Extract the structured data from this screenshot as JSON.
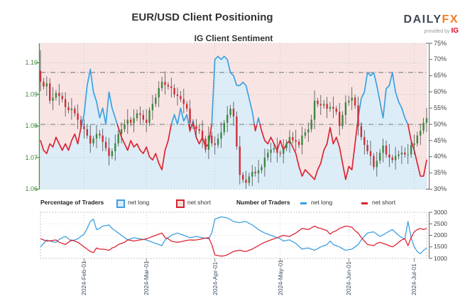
{
  "header": {
    "title": "EUR/USD Client Positioning",
    "logo": {
      "brand_daily": "DAILY",
      "brand_fx": "FX",
      "provided_by": "provided by",
      "provider": "IG"
    }
  },
  "legend": {
    "percentage_label": "Percentage of Traders",
    "number_label": "Number of Traders",
    "net_long": "net long",
    "net_short": "net short"
  },
  "colors": {
    "net_long_blue": "#3da0e0",
    "net_short_red": "#dd2433",
    "bull_candle_green": "#3a8a3f",
    "bear_candle_red": "#cf2e39",
    "wick_gray": "#4a4a4a",
    "long_area_fill": "#dcedf8",
    "short_area_fill": "#f9e4e4",
    "price_axis_green": "#4a8f4a",
    "grid_green": "#a7c9a7",
    "grid_gray": "#c4c4c4",
    "reference_gray": "#8a8a8a",
    "logo_dark": "#3e4a56",
    "logo_orange": "#f47b20",
    "ig_red": "#e40523"
  },
  "chart_data": [
    {
      "type": "candlestick+line",
      "title": "IG Client Sentiment",
      "x_tick_labels": [
        "2024-Feb-01",
        "2024-Mar-01",
        "2024-Apr-01",
        "2024-May-01",
        "2024-Jun-01",
        "2024-Jul-01"
      ],
      "x_tick_day_index": [
        14,
        34,
        56,
        77,
        99,
        120
      ],
      "price_axis": {
        "side": "left",
        "labels": [
          "1.10",
          "1.09",
          "1.08",
          "1.07",
          "1.06"
        ],
        "ticks": [
          1.1,
          1.09,
          1.08,
          1.07,
          1.06
        ],
        "range": [
          1.06,
          1.1062
        ]
      },
      "percent_axis": {
        "side": "right",
        "labels": [
          "75%",
          "70%",
          "65%",
          "60%",
          "55%",
          "50%",
          "45%",
          "40%",
          "35%",
          "30%"
        ],
        "ticks": [
          75,
          70,
          65,
          60,
          55,
          50,
          45,
          40,
          35,
          30
        ],
        "range": [
          30,
          75
        ]
      },
      "reference_lines_pct": [
        66,
        50
      ],
      "series": [
        {
          "name": "EUR/USD price",
          "type": "candles",
          "first_open": 1.0975,
          "first_high": 1.104,
          "closes": [
            1.094,
            1.0925,
            1.0935,
            1.088,
            1.089,
            1.0905,
            1.0895,
            1.0885,
            1.086,
            1.085,
            1.0855,
            1.084,
            1.082,
            1.08,
            1.079,
            1.077,
            1.0745,
            1.076,
            1.0775,
            1.077,
            1.075,
            1.073,
            1.0705,
            1.072,
            1.0745,
            1.0775,
            1.079,
            1.0805,
            1.082,
            1.081,
            1.0825,
            1.084,
            1.0835,
            1.082,
            1.081,
            1.085,
            1.087,
            1.089,
            1.092,
            1.094,
            1.093,
            1.0925,
            1.092,
            1.09,
            1.0895,
            1.0885,
            1.087,
            1.0855,
            1.081,
            1.08,
            1.079,
            1.0785,
            1.076,
            1.0725,
            1.077,
            1.0745,
            1.074,
            1.076,
            1.078,
            1.081,
            1.0835,
            1.0855,
            1.083,
            1.0735,
            1.0645,
            1.063,
            1.062,
            1.064,
            1.0655,
            1.065,
            1.066,
            1.067,
            1.07,
            1.0715,
            1.0725,
            1.073,
            1.0715,
            1.0712,
            1.073,
            1.0745,
            1.0765,
            1.0755,
            1.075,
            1.074,
            1.077,
            1.078,
            1.079,
            1.082,
            1.088,
            1.087,
            1.0865,
            1.087,
            1.0855,
            1.086,
            1.0855,
            1.0845,
            1.08,
            1.0835,
            1.0875,
            1.088,
            1.089,
            1.0865,
            1.08,
            1.0765,
            1.074,
            1.072,
            1.0705,
            1.067,
            1.069,
            1.0715,
            1.0738,
            1.071,
            1.07,
            1.0692,
            1.0705,
            1.071,
            1.0716,
            1.071,
            1.071,
            1.074,
            1.0745,
            1.077,
            1.0785,
            1.081,
            1.0825
          ]
        },
        {
          "name": "net long %",
          "type": "line",
          "values": [
            45,
            42,
            41,
            44,
            43,
            46,
            44,
            42,
            44,
            42,
            45,
            47,
            44,
            49,
            53,
            62,
            67,
            60,
            57,
            52,
            55,
            50,
            60,
            55,
            52,
            49,
            46,
            44,
            42,
            45,
            43,
            44,
            42,
            41,
            43,
            40,
            39,
            41,
            38,
            36,
            42,
            45,
            50,
            53,
            50,
            55,
            51,
            53,
            48,
            51,
            46,
            44,
            46,
            43,
            44,
            50,
            70,
            71,
            70,
            71,
            70,
            66,
            65,
            62,
            62,
            63,
            62,
            58,
            54,
            48,
            52,
            48,
            45,
            44,
            46,
            44,
            42,
            45,
            42,
            44,
            45,
            43,
            41,
            37,
            34,
            36,
            35,
            34,
            33,
            36,
            38,
            42,
            44,
            49,
            44,
            46,
            43,
            38,
            33,
            37,
            36,
            44,
            52,
            58,
            60,
            66,
            65,
            66,
            62,
            57,
            52,
            61,
            62,
            66,
            60,
            57,
            55,
            52,
            50,
            45,
            42,
            38,
            34,
            34,
            39
          ]
        }
      ]
    },
    {
      "type": "line",
      "name": "Number of Traders",
      "count_axis": {
        "side": "right",
        "labels": [
          "3000",
          "2500",
          "2000",
          "1500",
          "1000"
        ],
        "ticks": [
          3000,
          2500,
          2000,
          1500,
          1000
        ],
        "range": [
          1000,
          3000
        ]
      },
      "series": [
        {
          "name": "net long count",
          "values": [
            1500,
            1650,
            1800,
            1750,
            1720,
            1700,
            1820,
            1900,
            1950,
            1850,
            1750,
            1800,
            1850,
            1950,
            2050,
            2300,
            2600,
            2700,
            2250,
            2300,
            2400,
            2420,
            2450,
            2300,
            2200,
            2100,
            2000,
            1900,
            1800,
            1850,
            1900,
            1870,
            1850,
            1820,
            1800,
            1750,
            1700,
            1650,
            1600,
            1550,
            1800,
            1900,
            2000,
            2050,
            2100,
            2050,
            2000,
            1950,
            1900,
            1920,
            1950,
            1920,
            1900,
            1870,
            1850,
            2100,
            2700,
            2750,
            2800,
            2780,
            2750,
            2680,
            2600,
            2570,
            2550,
            2580,
            2600,
            2520,
            2450,
            2350,
            2250,
            2170,
            2100,
            2050,
            2000,
            1950,
            1900,
            1850,
            1750,
            1780,
            1800,
            1720,
            1650,
            1520,
            1400,
            1430,
            1450,
            1400,
            1350,
            1420,
            1500,
            1550,
            1600,
            1750,
            1600,
            1550,
            1500,
            1420,
            1350,
            1380,
            1400,
            1500,
            1600,
            1800,
            1950,
            2100,
            2130,
            2150,
            2050,
            1950,
            2020,
            2100,
            2180,
            2250,
            2120,
            2000,
            1900,
            1850,
            2600,
            1900,
            1500,
            1300,
            1200,
            1350,
            1450
          ]
        },
        {
          "name": "net short count",
          "values": [
            1850,
            1800,
            1750,
            1760,
            1780,
            1800,
            1700,
            1650,
            1600,
            1700,
            1800,
            1750,
            1700,
            1600,
            1500,
            1400,
            1300,
            1250,
            1450,
            1400,
            1400,
            1380,
            1350,
            1450,
            1500,
            1600,
            1650,
            1700,
            1800,
            1780,
            1750,
            1780,
            1800,
            1820,
            1850,
            1900,
            1950,
            2000,
            2050,
            2100,
            1900,
            1850,
            1750,
            1720,
            1700,
            1720,
            1750,
            1780,
            1800,
            1790,
            1800,
            1820,
            1850,
            1880,
            1900,
            1600,
            1150,
            1120,
            1100,
            1110,
            1150,
            1230,
            1300,
            1330,
            1350,
            1320,
            1300,
            1350,
            1400,
            1480,
            1550,
            1630,
            1700,
            1750,
            1800,
            1850,
            1900,
            1950,
            2000,
            1970,
            1950,
            2030,
            2100,
            2200,
            2300,
            2270,
            2250,
            2320,
            2400,
            2330,
            2300,
            2250,
            2200,
            2050,
            2150,
            2200,
            2300,
            2350,
            2400,
            2380,
            2350,
            2200,
            2100,
            1900,
            1750,
            1600,
            1580,
            1550,
            1650,
            1700,
            1650,
            1600,
            1550,
            1500,
            1580,
            1700,
            1800,
            1850,
            1550,
            1900,
            2150,
            2250,
            2300,
            2250,
            2300
          ]
        }
      ]
    }
  ]
}
